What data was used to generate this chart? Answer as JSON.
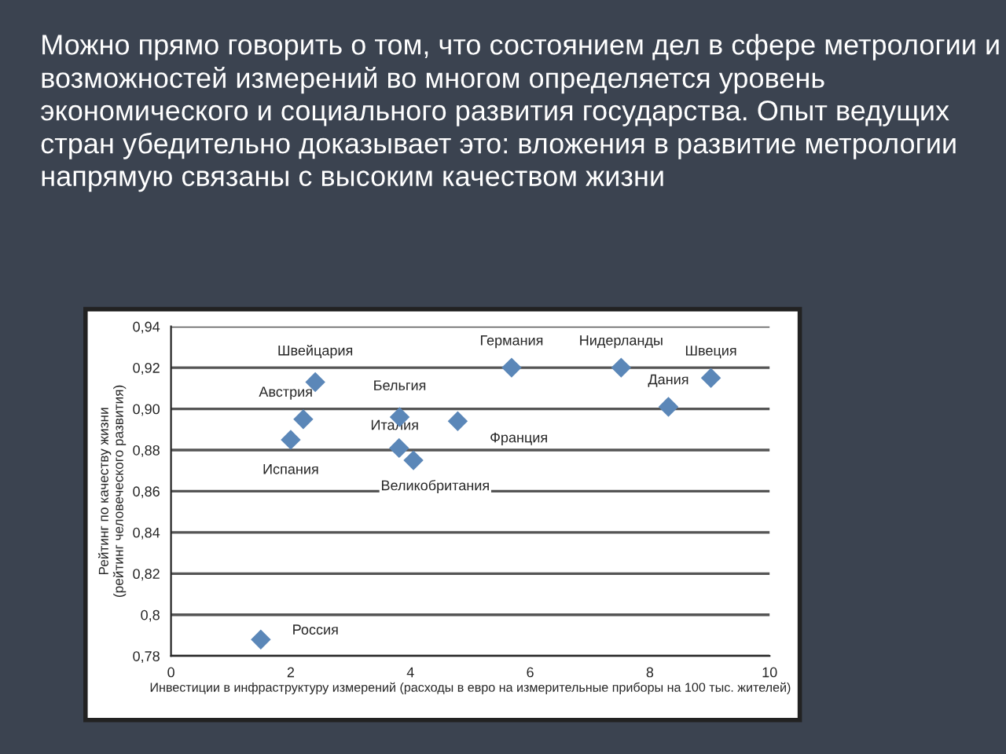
{
  "chart_data": {
    "type": "scatter",
    "title": "Можно прямо говорить о том, что состоянием дел в сфере метрологии и возможностей измерений во многом определяется уровень экономического и социального развития государства. Опыт ведущих стран убедительно доказывает это: вложения в развитие метрологии напрямую связаны с высоким качеством жизни",
    "xlabel": "Инвестиции в инфраструктуру измерений (расходы в евро на измерительные приборы на 100 тыс. жителей)",
    "ylabel": "Рейтинг по качеству жизни\n(рейтинг человеческого развития)",
    "x": [
      2.41,
      2.21,
      2.0,
      3.82,
      3.81,
      4.05,
      4.79,
      5.69,
      7.52,
      8.31,
      9.02,
      1.5
    ],
    "values": [
      0.913,
      0.895,
      0.885,
      0.896,
      0.881,
      0.875,
      0.894,
      0.92,
      0.92,
      0.901,
      0.915,
      0.788
    ],
    "color": "#5b87b8",
    "marker": "diamond",
    "annotations": [
      {
        "text": "Швейцария",
        "x": 2.41,
        "y": 0.913
      },
      {
        "text": "Австрия",
        "x": 2.21,
        "y": 0.895
      },
      {
        "text": "Испания",
        "x": 2.0,
        "y": 0.885
      },
      {
        "text": "Бельгия",
        "x": 3.82,
        "y": 0.896
      },
      {
        "text": "Италия",
        "x": 3.81,
        "y": 0.881
      },
      {
        "text": "Великобритания",
        "x": 4.05,
        "y": 0.875
      },
      {
        "text": "Франция",
        "x": 4.79,
        "y": 0.894
      },
      {
        "text": "Германия",
        "x": 5.69,
        "y": 0.92
      },
      {
        "text": "Нидерланды",
        "x": 7.52,
        "y": 0.92
      },
      {
        "text": "Дания",
        "x": 8.31,
        "y": 0.901
      },
      {
        "text": "Швеция",
        "x": 9.02,
        "y": 0.915
      },
      {
        "text": "Россия",
        "x": 1.5,
        "y": 0.788
      }
    ],
    "xlim": [
      0,
      10
    ],
    "xticks": [
      0,
      2,
      4,
      6,
      8,
      10
    ],
    "ylim": [
      0.78,
      0.94
    ],
    "yticks": [
      {
        "value": 0.78,
        "label": "0,78"
      },
      {
        "value": 0.8,
        "label": "0,8"
      },
      {
        "value": 0.82,
        "label": "0,82"
      },
      {
        "value": 0.84,
        "label": "0,84"
      },
      {
        "value": 0.86,
        "label": "0,86"
      },
      {
        "value": 0.88,
        "label": "0,88"
      },
      {
        "value": 0.9,
        "label": "0,90"
      },
      {
        "value": 0.92,
        "label": "0,92"
      },
      {
        "value": 0.94,
        "label": "0,94"
      }
    ],
    "grid": "y"
  }
}
